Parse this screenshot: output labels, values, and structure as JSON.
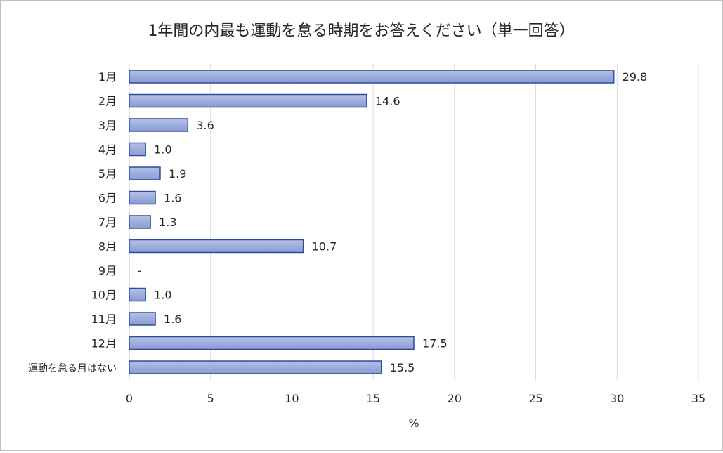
{
  "chart_data": {
    "type": "bar",
    "orientation": "horizontal",
    "title": "1年間の内最も運動を怠る時期をお答えください（単一回答）",
    "xlabel": "%",
    "ylabel": "",
    "xlim": [
      0,
      35
    ],
    "xticks": [
      0,
      5,
      10,
      15,
      20,
      25,
      30,
      35
    ],
    "grid": true,
    "legend": "none",
    "categories": [
      "1月",
      "2月",
      "3月",
      "4月",
      "5月",
      "6月",
      "7月",
      "8月",
      "9月",
      "10月",
      "11月",
      "12月",
      "運動を怠る月はない"
    ],
    "values": [
      29.8,
      14.6,
      3.6,
      1.0,
      1.9,
      1.6,
      1.3,
      10.7,
      null,
      1.0,
      1.6,
      17.5,
      15.5
    ],
    "data_labels": [
      "29.8",
      "14.6",
      "3.6",
      "1.0",
      "1.9",
      "1.6",
      "1.3",
      "10.7",
      "-",
      "1.0",
      "1.6",
      "17.5",
      "15.5"
    ],
    "bar_fill_top": "#b4c0e6",
    "bar_fill_bottom": "#8a9bd4",
    "bar_stroke": "#2f4d97",
    "grid_color": "#d9d9d9"
  }
}
